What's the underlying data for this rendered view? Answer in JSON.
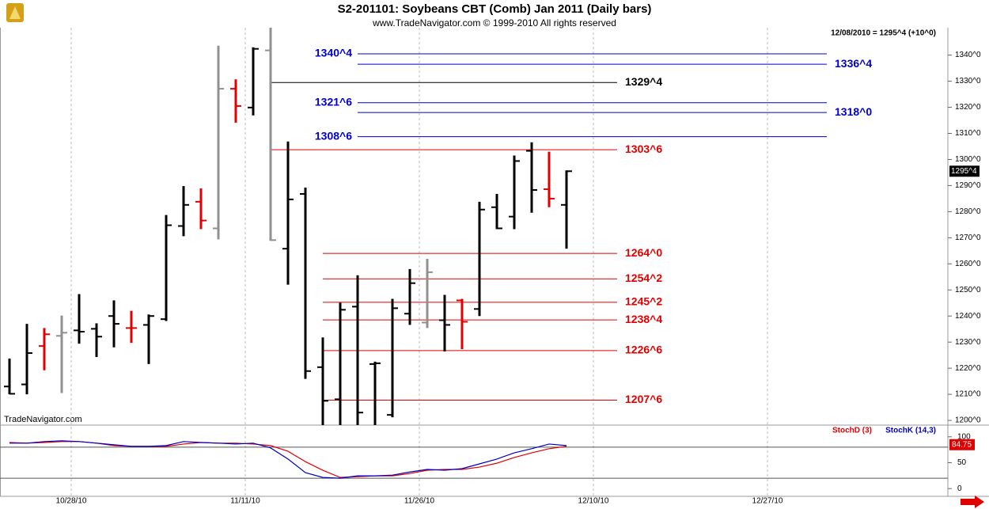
{
  "chart_data": [
    {
      "type": "ohlc",
      "title": "S2-201101:  Soybeans CBT (Comb) Jan 2011  (Daily bars)",
      "subtitle": "www.TradeNavigator.com © 1999-2010 All rights reserved",
      "status": "12/08/2010 = 1295^4 (+10^0)",
      "watermark": "TradeNavigator.com",
      "ylim": [
        1198.2,
        1350.5
      ],
      "yticks": [
        {
          "value": 1200,
          "label": "1200^0"
        },
        {
          "value": 1210,
          "label": "1210^0"
        },
        {
          "value": 1220,
          "label": "1220^0"
        },
        {
          "value": 1230,
          "label": "1230^0"
        },
        {
          "value": 1240,
          "label": "1240^0"
        },
        {
          "value": 1250,
          "label": "1250^0"
        },
        {
          "value": 1260,
          "label": "1260^0"
        },
        {
          "value": 1270,
          "label": "1270^0"
        },
        {
          "value": 1280,
          "label": "1280^0"
        },
        {
          "value": 1290,
          "label": "1290^0"
        },
        {
          "value": 1300,
          "label": "1300^0"
        },
        {
          "value": 1310,
          "label": "1310^0"
        },
        {
          "value": 1320,
          "label": "1320^0"
        },
        {
          "value": 1330,
          "label": "1330^0"
        },
        {
          "value": 1340,
          "label": "1340^0"
        }
      ],
      "xticks": [
        "10/28/10",
        "11/11/10",
        "11/26/10",
        "12/10/10",
        "12/27/10"
      ],
      "last_price": {
        "value": 1295.5,
        "label": "1295^4"
      },
      "open": [
        1213,
        1213.8,
        1228.5,
        1232.4,
        1234.5,
        1235.1,
        1240,
        1235.4,
        1236.6,
        1238.8,
        1274.5,
        1283.8,
        1273.6,
        1327.1,
        1319.9,
        1341.8,
        1265.8,
        1286.8,
        1220.4,
        1208.1,
        1243.6,
        1221.6,
        1202.1,
        1240.9,
        1237.5,
        1238.4,
        1246,
        1242.7,
        1281.7,
        1278.1,
        1303.3,
        1288.6,
        1282.6
      ],
      "high": [
        1223.7,
        1237,
        1235.4,
        1240.2,
        1248.4,
        1237.2,
        1246,
        1242,
        1240.6,
        1278.7,
        1289.8,
        1288.9,
        1343.6,
        1330.7,
        1343,
        1352,
        1306.9,
        1289.2,
        1231.8,
        1245.1,
        1255.6,
        1222.5,
        1246.6,
        1258,
        1261.9,
        1248.1,
        1246.6,
        1283.8,
        1286.8,
        1301.5,
        1306.6,
        1303,
        1295.8
      ],
      "low": [
        1210,
        1210,
        1219.2,
        1210.5,
        1229.4,
        1224.3,
        1228,
        1229.7,
        1221.6,
        1238.1,
        1270.6,
        1273.3,
        1269.4,
        1314.1,
        1316.9,
        1268.8,
        1252,
        1215.9,
        1196,
        1196,
        1196,
        1196,
        1201.2,
        1236.6,
        1235.4,
        1226.4,
        1227.3,
        1240,
        1273.3,
        1273.3,
        1279.6,
        1281.7,
        1265.8
      ],
      "close": [
        1210.2,
        1225.8,
        1233,
        1233.6,
        1234,
        1232.1,
        1237,
        1235.4,
        1240,
        1274.8,
        1282.6,
        1276.6,
        1327.1,
        1320.5,
        1342.4,
        1269.1,
        1284.7,
        1218.9,
        1207.5,
        1242.4,
        1203,
        1221.9,
        1243,
        1252.6,
        1256.8,
        1236.6,
        1237.8,
        1280.8,
        1273.6,
        1299.4,
        1288.3,
        1285,
        1295.5
      ],
      "colors": [
        "#000000",
        "#000000",
        "#e00000",
        "#909090",
        "#000000",
        "#000000",
        "#000000",
        "#e00000",
        "#000000",
        "#000000",
        "#000000",
        "#e00000",
        "#909090",
        "#e00000",
        "#000000",
        "#909090",
        "#000000",
        "#000000",
        "#000000",
        "#000000",
        "#000000",
        "#000000",
        "#000000",
        "#000000",
        "#909090",
        "#000000",
        "#e00000",
        "#000000",
        "#000000",
        "#000000",
        "#000000",
        "#e00000",
        "#000000"
      ],
      "levels": [
        {
          "value": 1340.5,
          "label": "1340^4",
          "color": "#0000cc"
        },
        {
          "value": 1336.5,
          "label": "1336^4",
          "color": "#0000cc"
        },
        {
          "value": 1329.5,
          "label": "1329^4",
          "color": "#000000"
        },
        {
          "value": 1321.75,
          "label": "1321^6",
          "color": "#0000cc"
        },
        {
          "value": 1318,
          "label": "1318^0",
          "color": "#0000cc"
        },
        {
          "value": 1308.75,
          "label": "1308^6",
          "color": "#0000cc"
        },
        {
          "value": 1303.75,
          "label": "1303^6",
          "color": "#e00000"
        },
        {
          "value": 1264,
          "label": "1264^0",
          "color": "#e00000"
        },
        {
          "value": 1254.25,
          "label": "1254^2",
          "color": "#e00000"
        },
        {
          "value": 1245.25,
          "label": "1245^2",
          "color": "#e00000"
        },
        {
          "value": 1238.5,
          "label": "1238^4",
          "color": "#e00000"
        },
        {
          "value": 1226.75,
          "label": "1226^6",
          "color": "#e00000"
        },
        {
          "value": 1207.75,
          "label": "1207^6",
          "color": "#e00000"
        }
      ]
    },
    {
      "type": "line",
      "ylim": [
        -15,
        118
      ],
      "yticks": [
        0,
        50,
        100
      ],
      "levels": [
        20,
        80
      ],
      "current": 84.75,
      "series": [
        {
          "name": "StochD (3)",
          "color": "#e00000",
          "values": [
            89,
            87.7,
            89,
            90.8,
            90.8,
            87.7,
            83,
            81.5,
            81.5,
            81.5,
            86,
            89,
            87.7,
            87.7,
            86,
            83,
            72,
            52,
            35.4,
            21.5,
            23,
            24.6,
            24.6,
            29,
            35.4,
            37,
            37,
            41.5,
            49,
            60,
            69,
            77,
            81.5
          ]
        },
        {
          "name": "StochK (14,3)",
          "color": "#0000cc",
          "values": [
            87.7,
            87.7,
            90.8,
            92.3,
            90.8,
            87.7,
            84.6,
            81.5,
            81.5,
            83,
            90.8,
            89,
            87.7,
            86,
            87.7,
            78.5,
            57,
            30.8,
            21.5,
            20,
            24.6,
            24.6,
            26,
            32,
            37,
            35.4,
            38.5,
            47.7,
            57,
            69,
            77,
            86,
            83
          ]
        }
      ]
    }
  ]
}
